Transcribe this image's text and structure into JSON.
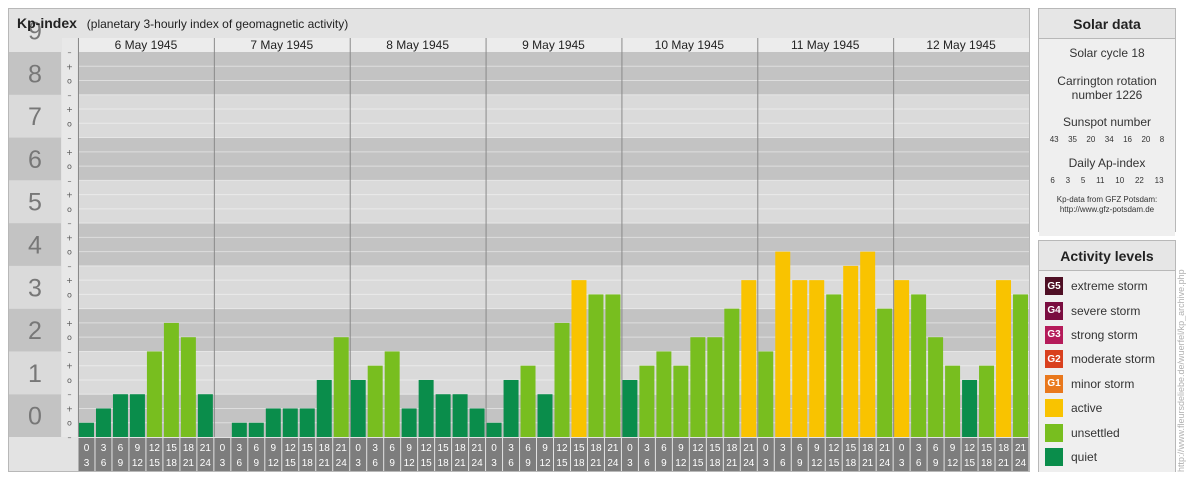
{
  "title": "Kp-index",
  "subtitle": "(planetary 3-hourly index of geomagnetic activity)",
  "chart_data": {
    "type": "bar",
    "y_ticks": [
      "0",
      "1",
      "2",
      "3",
      "4",
      "5",
      "6",
      "7",
      "8",
      "9"
    ],
    "sub_ticks": [
      "–",
      "o",
      "+"
    ],
    "ylim": [
      0,
      9
    ],
    "days": [
      "6 May 1945",
      "7 May 1945",
      "8 May 1945",
      "9 May 1945",
      "10 May 1945",
      "11 May 1945",
      "12 May 1945"
    ],
    "hour_start": [
      "0",
      "3",
      "6",
      "9",
      "12",
      "15",
      "18",
      "21"
    ],
    "hour_end": [
      "3",
      "6",
      "9",
      "12",
      "15",
      "18",
      "21",
      "24"
    ],
    "values": [
      0.333,
      0.667,
      1.0,
      1.0,
      2.0,
      2.667,
      2.333,
      1.0,
      0.0,
      0.333,
      0.333,
      0.667,
      0.667,
      0.667,
      1.333,
      2.333,
      1.333,
      1.667,
      2.0,
      0.667,
      1.333,
      1.0,
      1.0,
      0.667,
      0.333,
      1.333,
      1.667,
      1.0,
      2.667,
      3.667,
      3.333,
      3.333,
      1.333,
      1.667,
      2.0,
      1.667,
      2.333,
      2.333,
      3.0,
      3.667,
      2.0,
      4.333,
      3.667,
      3.667,
      3.333,
      4.0,
      4.333,
      3.0,
      3.667,
      3.333,
      2.333,
      1.667,
      1.333,
      1.667,
      3.667,
      3.333
    ],
    "colors": {
      "quiet": "#0a8d4b",
      "unsettled": "#78be1f",
      "active": "#f9c300",
      "grid_dark": "#c3c3c3",
      "grid_light": "#dadada",
      "axis_label": "#777777",
      "hour_box": "#7d7d7d"
    }
  },
  "solar": {
    "heading": "Solar data",
    "cycle": "Solar cycle 18",
    "carrington_line1": "Carrington rotation",
    "carrington_line2": "number 1226",
    "sunspot_label": "Sunspot number",
    "sunspot_values": [
      "43",
      "35",
      "20",
      "34",
      "16",
      "20",
      "8"
    ],
    "ap_label": "Daily Ap-index",
    "ap_values": [
      "6",
      "3",
      "5",
      "11",
      "10",
      "22",
      "13"
    ],
    "source_line1": "Kp-data from GFZ Potsdam:",
    "source_line2": "http://www.gfz-potsdam.de"
  },
  "activity": {
    "heading": "Activity levels",
    "levels": [
      {
        "badge": "G5",
        "label": "extreme storm",
        "color": "#4e0f24"
      },
      {
        "badge": "G4",
        "label": "severe storm",
        "color": "#7a0d40"
      },
      {
        "badge": "G3",
        "label": "strong storm",
        "color": "#b51b5a"
      },
      {
        "badge": "G2",
        "label": "moderate storm",
        "color": "#d9401e"
      },
      {
        "badge": "G1",
        "label": "minor storm",
        "color": "#e9781c"
      },
      {
        "badge": "",
        "label": "active",
        "color": "#f9c300"
      },
      {
        "badge": "",
        "label": "unsettled",
        "color": "#78be1f"
      },
      {
        "badge": "",
        "label": "quiet",
        "color": "#0a8d4b"
      }
    ]
  },
  "watermark": "http://www.fleursdeliebe.de/wuerfel/kp_archive.php"
}
